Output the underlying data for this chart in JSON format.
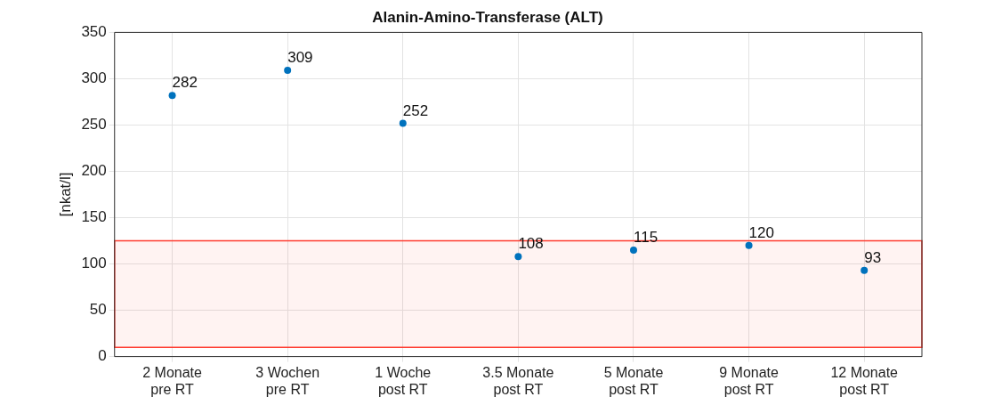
{
  "chart_data": {
    "type": "scatter",
    "title": "Alanin-Amino-Transferase (ALT)",
    "ylabel": "[nkat/l]",
    "categories": [
      "2 Monate\npre RT",
      "3 Wochen\npre RT",
      "1 Woche\npost RT",
      "3.5 Monate\npost RT",
      "5 Monate\npost RT",
      "9 Monate\npost RT",
      "12 Monate\npost RT"
    ],
    "series": [
      {
        "color": "#0072bd",
        "values": [
          282,
          309,
          252,
          108,
          115,
          120,
          93
        ]
      }
    ],
    "ylim": [
      0,
      350
    ],
    "yticks": [
      0,
      50,
      100,
      150,
      200,
      250,
      300,
      350
    ],
    "bands": [
      {
        "axis": "y",
        "from": 10,
        "to": 125,
        "color": "#ff3b2f"
      }
    ],
    "data_labels": true,
    "grid": true,
    "marker": "circle",
    "legend": false
  }
}
